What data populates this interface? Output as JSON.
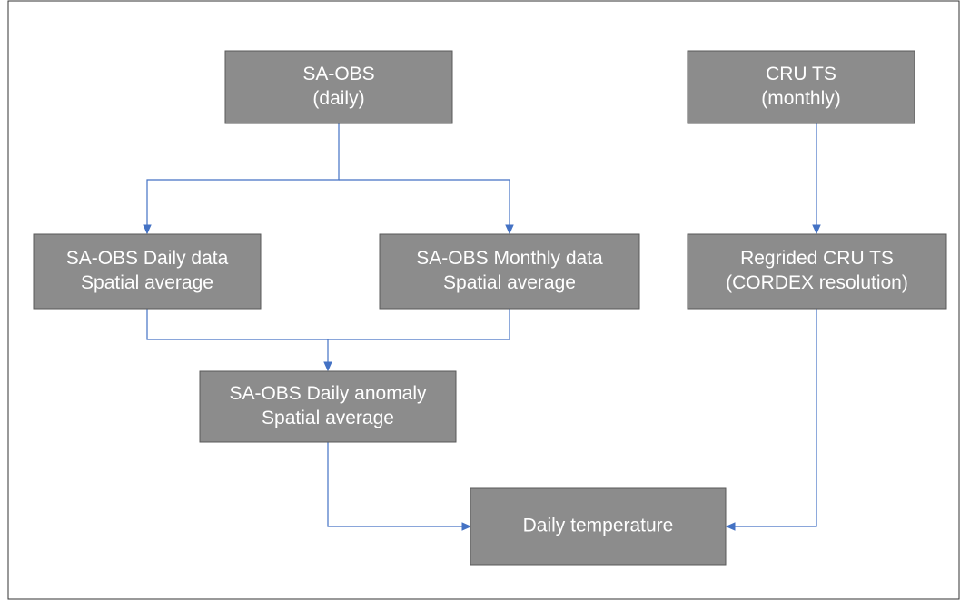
{
  "nodes": [
    {
      "lines": [
        "SA-OBS",
        "(daily)"
      ]
    },
    {
      "lines": [
        "CRU TS",
        "(monthly)"
      ]
    },
    {
      "lines": [
        "SA-OBS Daily data",
        "Spatial average"
      ]
    },
    {
      "lines": [
        "SA-OBS Monthly data",
        "Spatial average"
      ]
    },
    {
      "lines": [
        "Regrided CRU TS",
        "(CORDEX resolution)"
      ]
    },
    {
      "lines": [
        "SA-OBS Daily anomaly",
        "Spatial average"
      ]
    },
    {
      "lines": [
        "Daily temperature"
      ]
    }
  ]
}
